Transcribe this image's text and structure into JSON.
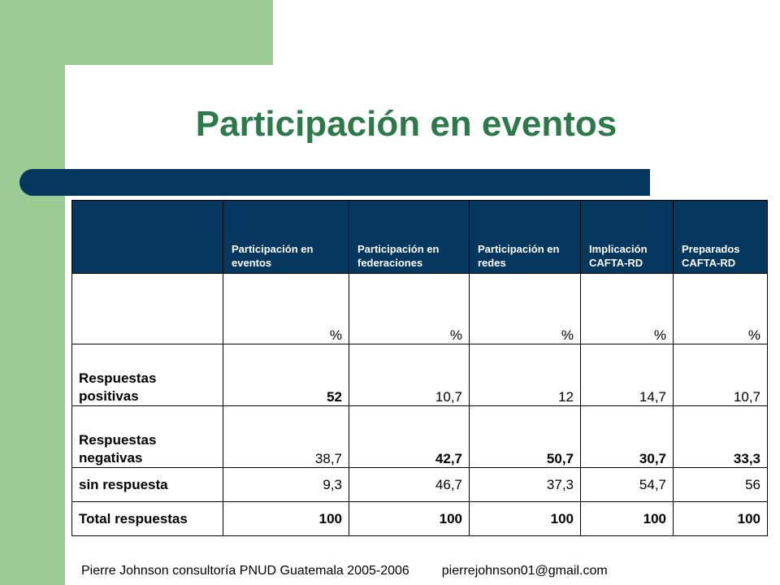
{
  "slide": {
    "title": "Participación en eventos",
    "colors": {
      "title": "#2c7a4a",
      "accent_green": "#9ccc94",
      "header_blue": "#06375f"
    }
  },
  "table": {
    "headers": [
      "",
      "Participación en eventos",
      "Participación en federaciones",
      "Participación en redes",
      "Implicación CAFTA-RD",
      "Preparados CAFTA-RD"
    ],
    "units_row": [
      "",
      "%",
      "%",
      "%",
      "%",
      "%"
    ],
    "rows": [
      {
        "label": "Respuestas positivas",
        "values": [
          "52",
          "10,7",
          "12",
          "14,7",
          "10,7"
        ]
      },
      {
        "label": "Respuestas negativas",
        "values": [
          "38,7",
          "42,7",
          "50,7",
          "30,7",
          "33,3"
        ]
      },
      {
        "label": "sin respuesta",
        "values": [
          "9,3",
          "46,7",
          "37,3",
          "54,7",
          "56"
        ]
      },
      {
        "label": "Total respuestas",
        "values": [
          "100",
          "100",
          "100",
          "100",
          "100"
        ]
      }
    ]
  },
  "footer": {
    "credit": "Pierre Johnson consultoría PNUD Guatemala 2005-2006",
    "email": "pierrejohnson01@gmail.com"
  }
}
